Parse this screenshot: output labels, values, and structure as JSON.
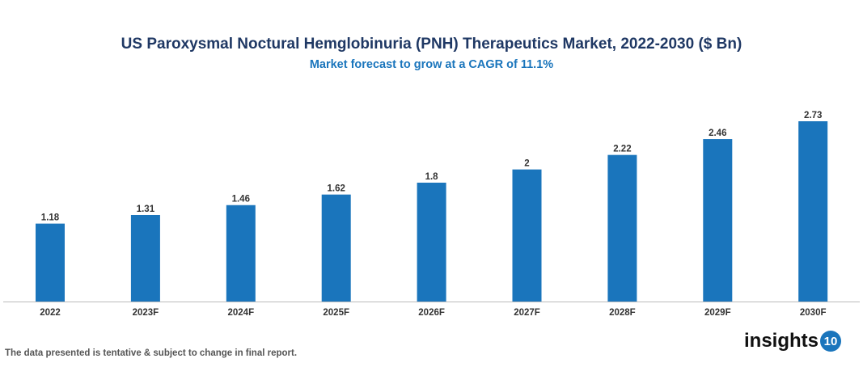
{
  "chart_data": {
    "type": "bar",
    "title": "US Paroxysmal Noctural Hemglobinuria (PNH) Therapeutics Market, 2022-2030 ($ Bn)",
    "subtitle": "Market forecast to grow at a CAGR of 11.1%",
    "categories": [
      "2022",
      "2023F",
      "2024F",
      "2025F",
      "2026F",
      "2027F",
      "2028F",
      "2029F",
      "2030F"
    ],
    "values": [
      1.18,
      1.31,
      1.46,
      1.62,
      1.8,
      2,
      2.22,
      2.46,
      2.73
    ],
    "value_labels": [
      "1.18",
      "1.31",
      "1.46",
      "1.62",
      "1.8",
      "2",
      "2.22",
      "2.46",
      "2.73"
    ],
    "ylim": [
      0,
      2.73
    ],
    "grid": false,
    "bar_color": "#1a75bc"
  },
  "footer": {
    "disclaimer": "The data presented is tentative & subject to change in final report."
  },
  "logo": {
    "text": "insights",
    "badge": "10"
  }
}
